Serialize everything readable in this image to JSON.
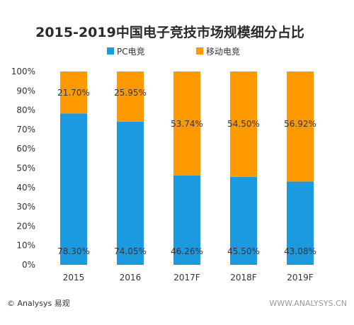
{
  "chart_data": {
    "type": "bar",
    "stacked": true,
    "title": "2015-2019中国电子竞技市场规模细分占比",
    "categories": [
      "2015",
      "2016",
      "2017F",
      "2018F",
      "2019F"
    ],
    "series": [
      {
        "name": "PC电竞",
        "color": "#1c9ae0",
        "values": [
          78.3,
          74.05,
          46.26,
          45.5,
          43.08
        ]
      },
      {
        "name": "移动电竞",
        "color": "#ff9900",
        "values": [
          21.7,
          25.95,
          53.74,
          54.5,
          56.92
        ]
      }
    ],
    "data_labels": {
      "PC电竞": [
        "78.30%",
        "74.05%",
        "46.26%",
        "45.50%",
        "43.08%"
      ],
      "移动电竞": [
        "21.70%",
        "25.95%",
        "53.74%",
        "54.50%",
        "56.92%"
      ]
    },
    "ylim": [
      0,
      100
    ],
    "yticks": [
      "0%",
      "10%",
      "20%",
      "30%",
      "40%",
      "50%",
      "60%",
      "70%",
      "80%",
      "90%",
      "100%"
    ],
    "legend_position": "top",
    "grid": false
  },
  "footer": {
    "source": "© Analysys 易观",
    "watermark": "WWW.ANALYSYS.CN"
  }
}
